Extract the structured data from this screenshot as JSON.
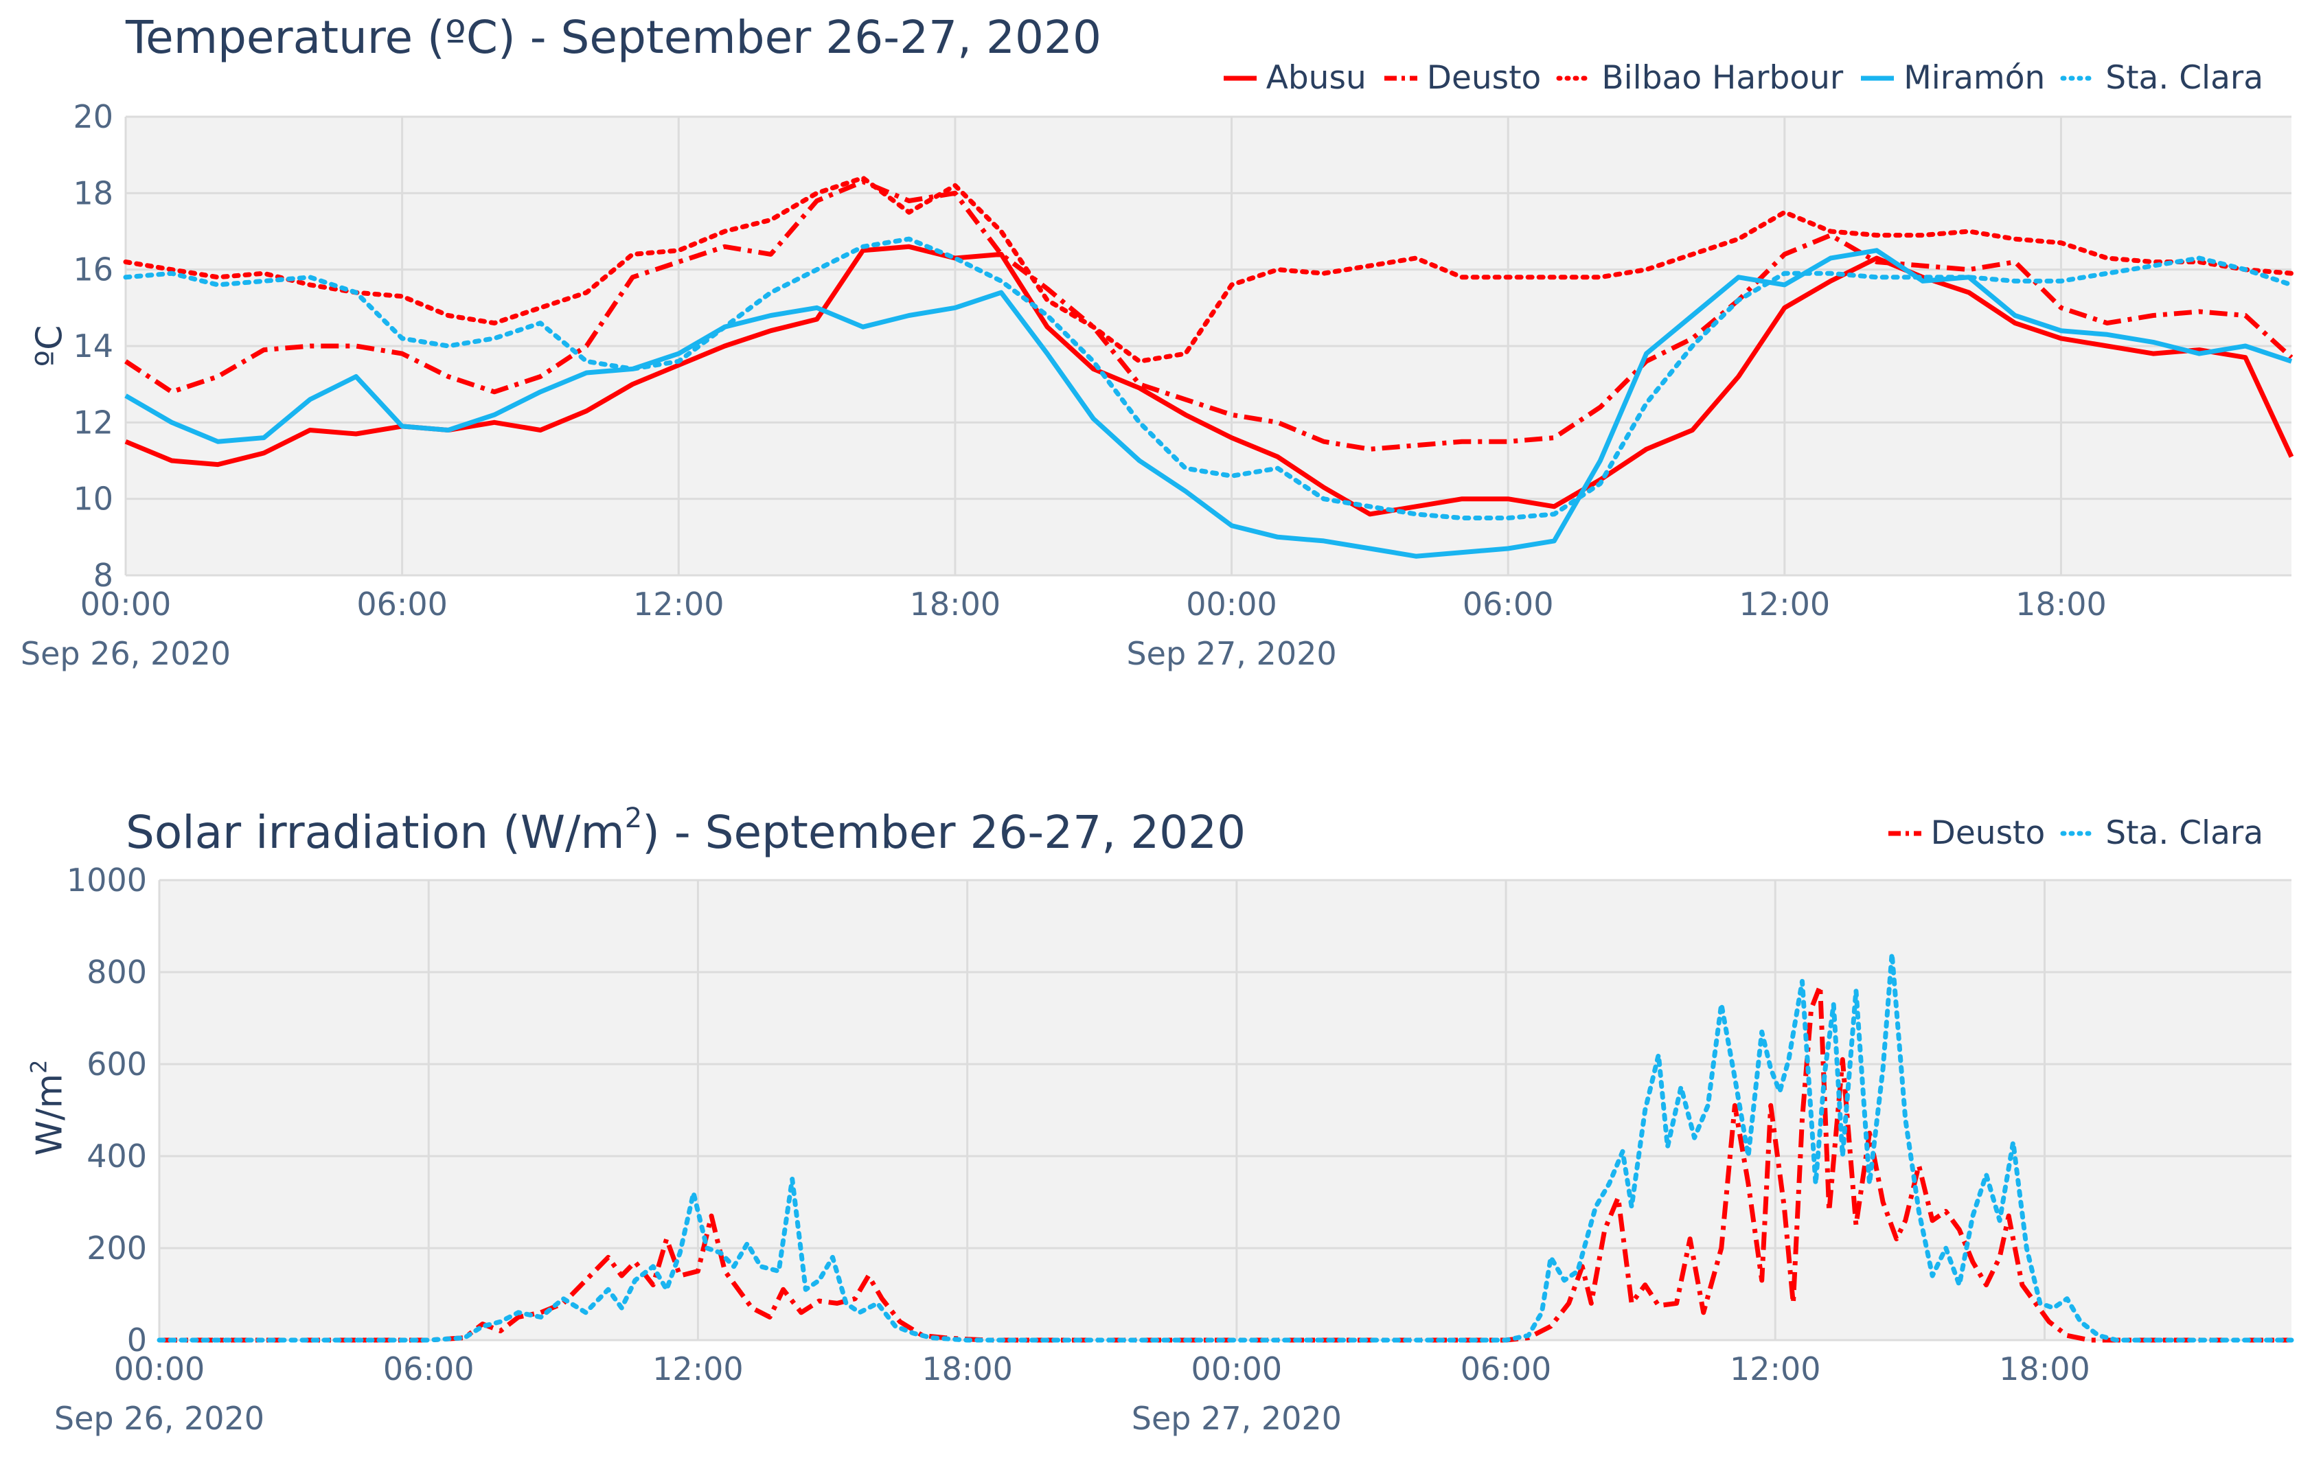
{
  "chart_data": [
    {
      "type": "line",
      "title": "Temperature (ºC) - September 26-27, 2020",
      "ylabel": "ºC",
      "xlabel": "",
      "ylim": [
        8,
        20
      ],
      "yticks": [
        8,
        10,
        12,
        14,
        16,
        18,
        20
      ],
      "xrange_hours": [
        0,
        47
      ],
      "xticks": [
        {
          "h": 0,
          "label": "00:00",
          "sub": "Sep 26, 2020"
        },
        {
          "h": 6,
          "label": "06:00",
          "sub": ""
        },
        {
          "h": 12,
          "label": "12:00",
          "sub": ""
        },
        {
          "h": 18,
          "label": "18:00",
          "sub": ""
        },
        {
          "h": 24,
          "label": "00:00",
          "sub": "Sep 27, 2020"
        },
        {
          "h": 30,
          "label": "06:00",
          "sub": ""
        },
        {
          "h": 36,
          "label": "12:00",
          "sub": ""
        },
        {
          "h": 42,
          "label": "18:00",
          "sub": ""
        }
      ],
      "x_hours": [
        0,
        1,
        2,
        3,
        4,
        5,
        6,
        7,
        8,
        9,
        10,
        11,
        12,
        13,
        14,
        15,
        16,
        17,
        18,
        19,
        20,
        21,
        22,
        23,
        24,
        25,
        26,
        27,
        28,
        29,
        30,
        31,
        32,
        33,
        34,
        35,
        36,
        37,
        38,
        39,
        40,
        41,
        42,
        43,
        44,
        45,
        46,
        47
      ],
      "series": [
        {
          "name": "Abusu",
          "color": "#ff0000",
          "dash": "solid",
          "values": [
            11.5,
            11.0,
            10.9,
            11.2,
            11.8,
            11.7,
            11.9,
            11.8,
            12.0,
            11.8,
            12.3,
            13.0,
            13.5,
            14.0,
            14.4,
            14.7,
            16.5,
            16.6,
            16.3,
            16.4,
            14.5,
            13.4,
            12.9,
            12.2,
            11.6,
            11.1,
            10.3,
            9.6,
            9.8,
            10.0,
            10.0,
            9.8,
            10.5,
            11.3,
            11.8,
            13.2,
            15.0,
            15.7,
            16.3,
            15.8,
            15.4,
            14.6,
            14.2,
            14.0,
            13.8,
            13.9,
            13.7,
            11.1
          ]
        },
        {
          "name": "Deusto",
          "color": "#ff0000",
          "dash": "dashdot",
          "values": [
            13.6,
            12.8,
            13.2,
            13.9,
            14.0,
            14.0,
            13.8,
            13.2,
            12.8,
            13.2,
            14.0,
            15.8,
            16.2,
            16.6,
            16.4,
            17.8,
            18.3,
            17.8,
            18.0,
            16.4,
            15.5,
            14.5,
            13.0,
            12.6,
            12.2,
            12.0,
            11.5,
            11.3,
            11.4,
            11.5,
            11.5,
            11.6,
            12.4,
            13.6,
            14.2,
            15.2,
            16.4,
            16.9,
            16.2,
            16.1,
            16.0,
            16.2,
            15.0,
            14.6,
            14.8,
            14.9,
            14.8,
            13.7
          ]
        },
        {
          "name": "Bilbao Harbour",
          "color": "#ff0000",
          "dash": "dot",
          "values": [
            16.2,
            16.0,
            15.8,
            15.9,
            15.6,
            15.4,
            15.3,
            14.8,
            14.6,
            15.0,
            15.4,
            16.4,
            16.5,
            17.0,
            17.3,
            18.0,
            18.4,
            17.5,
            18.2,
            17.0,
            15.2,
            14.5,
            13.6,
            13.8,
            15.6,
            16.0,
            15.9,
            16.1,
            16.3,
            15.8,
            15.8,
            15.8,
            15.8,
            16.0,
            16.4,
            16.8,
            17.5,
            17.0,
            16.9,
            16.9,
            17.0,
            16.8,
            16.7,
            16.3,
            16.2,
            16.2,
            16.0,
            15.9
          ]
        },
        {
          "name": "Miramón",
          "color": "#19b4f0",
          "dash": "solid",
          "values": [
            12.7,
            12.0,
            11.5,
            11.6,
            12.6,
            13.2,
            11.9,
            11.8,
            12.2,
            12.8,
            13.3,
            13.4,
            13.8,
            14.5,
            14.8,
            15.0,
            14.5,
            14.8,
            15.0,
            15.4,
            13.8,
            12.1,
            11.0,
            10.2,
            9.3,
            9.0,
            8.9,
            8.7,
            8.5,
            8.6,
            8.7,
            8.9,
            11.0,
            13.8,
            14.8,
            15.8,
            15.6,
            16.3,
            16.5,
            15.7,
            15.8,
            14.8,
            14.4,
            14.3,
            14.1,
            13.8,
            14.0,
            13.6
          ]
        },
        {
          "name": "Sta. Clara",
          "color": "#19b4f0",
          "dash": "dot",
          "values": [
            15.8,
            15.9,
            15.6,
            15.7,
            15.8,
            15.4,
            14.2,
            14.0,
            14.2,
            14.6,
            13.6,
            13.4,
            13.6,
            14.5,
            15.4,
            16.0,
            16.6,
            16.8,
            16.3,
            15.7,
            14.8,
            13.6,
            12.0,
            10.8,
            10.6,
            10.8,
            10.0,
            9.8,
            9.6,
            9.5,
            9.5,
            9.6,
            10.4,
            12.5,
            14.0,
            15.2,
            15.9,
            15.9,
            15.8,
            15.8,
            15.8,
            15.7,
            15.7,
            15.9,
            16.1,
            16.3,
            16.0,
            15.6
          ]
        }
      ]
    },
    {
      "type": "line",
      "title_main": "Solar irradiation (W/m",
      "title_sup": "2",
      "title_rest": ") - September 26-27, 2020",
      "ylabel_main": "W/m",
      "ylabel_sup": "2",
      "xlabel": "",
      "ylim": [
        0,
        1000
      ],
      "yticks": [
        0,
        200,
        400,
        600,
        800,
        1000
      ],
      "xrange_hours": [
        0,
        47.5
      ],
      "xticks": [
        {
          "h": 0,
          "label": "00:00",
          "sub": "Sep 26, 2020"
        },
        {
          "h": 6,
          "label": "06:00",
          "sub": ""
        },
        {
          "h": 12,
          "label": "12:00",
          "sub": ""
        },
        {
          "h": 18,
          "label": "18:00",
          "sub": ""
        },
        {
          "h": 24,
          "label": "00:00",
          "sub": "Sep 27, 2020"
        },
        {
          "h": 30,
          "label": "06:00",
          "sub": ""
        },
        {
          "h": 36,
          "label": "12:00",
          "sub": ""
        },
        {
          "h": 42,
          "label": "18:00",
          "sub": ""
        }
      ],
      "series": [
        {
          "name": "Deusto",
          "color": "#ff0000",
          "dash": "dashdot",
          "points": [
            [
              0,
              0
            ],
            [
              6,
              0
            ],
            [
              6.8,
              5
            ],
            [
              7.2,
              35
            ],
            [
              7.6,
              20
            ],
            [
              8,
              50
            ],
            [
              8.5,
              60
            ],
            [
              9,
              80
            ],
            [
              9.5,
              130
            ],
            [
              10,
              180
            ],
            [
              10.3,
              140
            ],
            [
              10.6,
              170
            ],
            [
              11,
              120
            ],
            [
              11.3,
              220
            ],
            [
              11.6,
              140
            ],
            [
              12,
              150
            ],
            [
              12.3,
              270
            ],
            [
              12.6,
              150
            ],
            [
              12.9,
              110
            ],
            [
              13.2,
              70
            ],
            [
              13.6,
              50
            ],
            [
              13.9,
              110
            ],
            [
              14.3,
              60
            ],
            [
              14.7,
              85
            ],
            [
              15.1,
              80
            ],
            [
              15.5,
              90
            ],
            [
              15.8,
              140
            ],
            [
              16.1,
              90
            ],
            [
              16.5,
              40
            ],
            [
              17,
              10
            ],
            [
              17.5,
              5
            ],
            [
              18,
              2
            ],
            [
              18.5,
              0
            ],
            [
              30,
              0
            ],
            [
              30.5,
              5
            ],
            [
              31,
              30
            ],
            [
              31.4,
              80
            ],
            [
              31.7,
              160
            ],
            [
              31.9,
              80
            ],
            [
              32.2,
              240
            ],
            [
              32.5,
              310
            ],
            [
              32.8,
              80
            ],
            [
              33.1,
              120
            ],
            [
              33.4,
              75
            ],
            [
              33.8,
              80
            ],
            [
              34.1,
              220
            ],
            [
              34.4,
              60
            ],
            [
              34.8,
              200
            ],
            [
              35.1,
              510
            ],
            [
              35.4,
              340
            ],
            [
              35.7,
              130
            ],
            [
              35.9,
              510
            ],
            [
              36.2,
              290
            ],
            [
              36.4,
              80
            ],
            [
              36.6,
              480
            ],
            [
              36.8,
              720
            ],
            [
              37,
              770
            ],
            [
              37.2,
              280
            ],
            [
              37.5,
              610
            ],
            [
              37.8,
              250
            ],
            [
              38.1,
              450
            ],
            [
              38.4,
              300
            ],
            [
              38.7,
              220
            ],
            [
              38.9,
              260
            ],
            [
              39.2,
              380
            ],
            [
              39.5,
              260
            ],
            [
              39.8,
              280
            ],
            [
              40.1,
              240
            ],
            [
              40.4,
              170
            ],
            [
              40.7,
              120
            ],
            [
              41,
              180
            ],
            [
              41.2,
              270
            ],
            [
              41.5,
              120
            ],
            [
              41.8,
              80
            ],
            [
              42.1,
              40
            ],
            [
              42.5,
              10
            ],
            [
              43,
              0
            ],
            [
              47.5,
              0
            ]
          ]
        },
        {
          "name": "Sta. Clara",
          "color": "#19b4f0",
          "dash": "dot",
          "points": [
            [
              0,
              0
            ],
            [
              6,
              0
            ],
            [
              6.8,
              5
            ],
            [
              7.2,
              30
            ],
            [
              7.6,
              40
            ],
            [
              8,
              60
            ],
            [
              8.5,
              50
            ],
            [
              9,
              90
            ],
            [
              9.5,
              60
            ],
            [
              10,
              110
            ],
            [
              10.3,
              70
            ],
            [
              10.6,
              130
            ],
            [
              11,
              160
            ],
            [
              11.3,
              110
            ],
            [
              11.6,
              190
            ],
            [
              11.9,
              320
            ],
            [
              12.2,
              200
            ],
            [
              12.5,
              190
            ],
            [
              12.8,
              160
            ],
            [
              13.1,
              210
            ],
            [
              13.4,
              160
            ],
            [
              13.8,
              150
            ],
            [
              14.1,
              350
            ],
            [
              14.4,
              110
            ],
            [
              14.7,
              130
            ],
            [
              15,
              180
            ],
            [
              15.3,
              80
            ],
            [
              15.6,
              60
            ],
            [
              16,
              80
            ],
            [
              16.4,
              30
            ],
            [
              16.8,
              15
            ],
            [
              17.2,
              5
            ],
            [
              18,
              0
            ],
            [
              30,
              0
            ],
            [
              30.5,
              10
            ],
            [
              30.8,
              60
            ],
            [
              31,
              180
            ],
            [
              31.3,
              130
            ],
            [
              31.6,
              150
            ],
            [
              32,
              290
            ],
            [
              32.3,
              340
            ],
            [
              32.6,
              410
            ],
            [
              32.8,
              290
            ],
            [
              33.1,
              500
            ],
            [
              33.4,
              620
            ],
            [
              33.6,
              420
            ],
            [
              33.9,
              550
            ],
            [
              34.2,
              440
            ],
            [
              34.5,
              510
            ],
            [
              34.8,
              730
            ],
            [
              35.1,
              570
            ],
            [
              35.4,
              400
            ],
            [
              35.7,
              670
            ],
            [
              35.9,
              590
            ],
            [
              36.1,
              540
            ],
            [
              36.3,
              610
            ],
            [
              36.6,
              780
            ],
            [
              36.9,
              340
            ],
            [
              37.1,
              580
            ],
            [
              37.3,
              730
            ],
            [
              37.5,
              400
            ],
            [
              37.8,
              760
            ],
            [
              38.1,
              340
            ],
            [
              38.4,
              590
            ],
            [
              38.6,
              840
            ],
            [
              38.9,
              480
            ],
            [
              39.2,
              280
            ],
            [
              39.5,
              140
            ],
            [
              39.8,
              200
            ],
            [
              40.1,
              120
            ],
            [
              40.4,
              270
            ],
            [
              40.7,
              360
            ],
            [
              41,
              260
            ],
            [
              41.3,
              430
            ],
            [
              41.6,
              200
            ],
            [
              41.9,
              80
            ],
            [
              42.2,
              70
            ],
            [
              42.5,
              90
            ],
            [
              42.8,
              40
            ],
            [
              43.2,
              10
            ],
            [
              43.6,
              0
            ],
            [
              47.5,
              0
            ]
          ]
        }
      ]
    }
  ]
}
